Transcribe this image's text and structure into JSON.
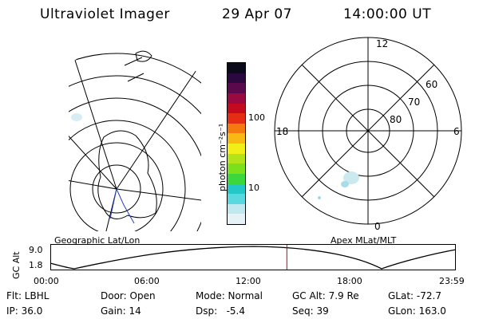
{
  "header": {
    "title": "Ultraviolet Imager",
    "date": "29 Apr 07",
    "time": "14:00:00 UT"
  },
  "colorbar": {
    "unit_label": "photon cm⁻²s⁻¹",
    "ticks": [
      "100",
      "10"
    ],
    "colors": [
      "#e6f3f6",
      "#bfe9ef",
      "#59d8df",
      "#22c8c8",
      "#3cd73c",
      "#7de01c",
      "#b5e31a",
      "#f0ef18",
      "#f7b912",
      "#f47a10",
      "#e52c14",
      "#c40a1e",
      "#9a0a40",
      "#5a0a4c",
      "#2a0a3e",
      "#0a0a1a"
    ]
  },
  "geo_panel": {
    "label": "Geographic Lat/Lon"
  },
  "polar_panel": {
    "label": "Apex MLat/MLT",
    "mlt_labels": {
      "top": "12",
      "bottom": "0",
      "left": "18",
      "right": "6"
    },
    "lat_labels": [
      "60",
      "70",
      "80"
    ]
  },
  "altitude_plot": {
    "ylabel": "GC Alt",
    "y_ticks": [
      "9.0",
      "1.8"
    ],
    "x_ticks": [
      "00:00",
      "06:00",
      "12:00",
      "18:00",
      "23:59"
    ],
    "current_time_hour": 14.0,
    "ymin": 1.8,
    "ymax": 9.0,
    "marker_color": "#cc0000"
  },
  "info": {
    "row1": [
      "Flt: LBHL",
      "Door: Open",
      "Mode: Normal",
      "GC Alt: 7.9 Re",
      "GLat: -72.7"
    ],
    "row2": [
      "IP: 36.0",
      "Gain: 14",
      "Dsp:   -5.4",
      "Seq: 39",
      "GLon: 163.0"
    ]
  }
}
